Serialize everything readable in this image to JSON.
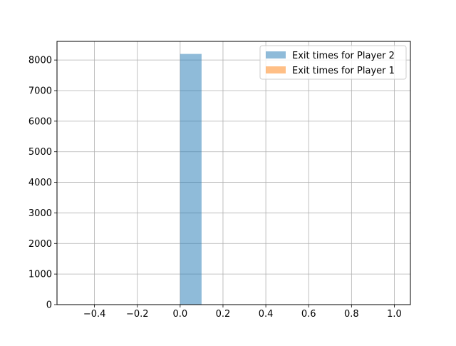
{
  "chart_data": {
    "type": "histogram",
    "title": "",
    "xlabel": "",
    "ylabel": "",
    "xlim": [
      -0.575,
      1.075
    ],
    "ylim": [
      0,
      8610
    ],
    "xticks": [
      -0.4,
      -0.2,
      0.0,
      0.2,
      0.4,
      0.6,
      0.8,
      1.0
    ],
    "xtick_labels": [
      "−0.4",
      "−0.2",
      "0.0",
      "0.2",
      "0.4",
      "0.6",
      "0.8",
      "1.0"
    ],
    "yticks": [
      0,
      1000,
      2000,
      3000,
      4000,
      5000,
      6000,
      7000,
      8000
    ],
    "ytick_labels": [
      "0",
      "1000",
      "2000",
      "3000",
      "4000",
      "5000",
      "6000",
      "7000",
      "8000"
    ],
    "grid": true,
    "legend_placement": "upper right",
    "series": [
      {
        "name": "Exit times for Player 2",
        "color": "#1f77b4",
        "alpha": 0.5,
        "bins": [
          {
            "x0": 0.0,
            "x1": 0.1,
            "count": 8200
          }
        ]
      },
      {
        "name": "Exit times for Player 1",
        "color": "#ff7f0e",
        "alpha": 0.5,
        "bins": []
      }
    ]
  }
}
